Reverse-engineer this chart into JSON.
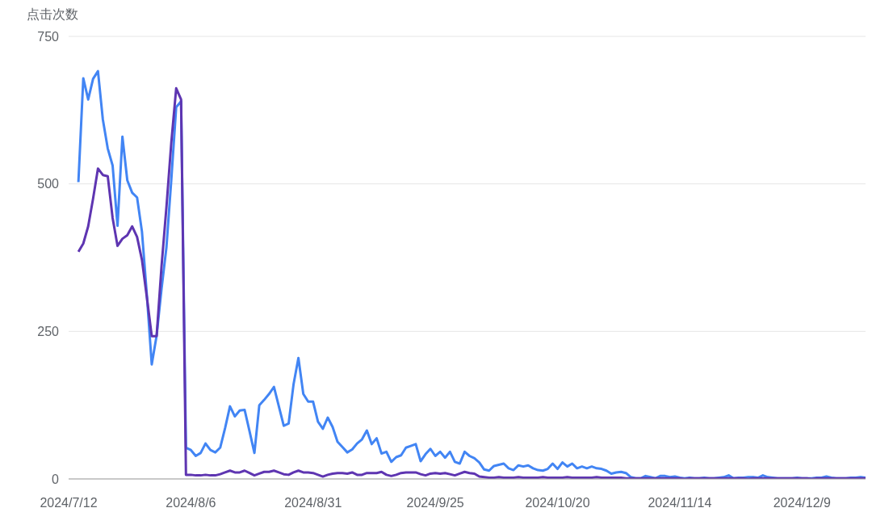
{
  "chart_data": {
    "type": "line",
    "ylabel": "点击次数",
    "x": [
      "2024-07-14",
      "2024-07-15",
      "2024-07-16",
      "2024-07-17",
      "2024-07-18",
      "2024-07-19",
      "2024-07-20",
      "2024-07-21",
      "2024-07-22",
      "2024-07-23",
      "2024-07-24",
      "2024-07-25",
      "2024-07-26",
      "2024-07-27",
      "2024-07-28",
      "2024-07-29",
      "2024-07-30",
      "2024-07-31",
      "2024-08-01",
      "2024-08-02",
      "2024-08-03",
      "2024-08-04",
      "2024-08-05",
      "2024-08-06",
      "2024-08-07",
      "2024-08-08",
      "2024-08-09",
      "2024-08-10",
      "2024-08-11",
      "2024-08-12",
      "2024-08-13",
      "2024-08-14",
      "2024-08-15",
      "2024-08-16",
      "2024-08-17",
      "2024-08-18",
      "2024-08-19",
      "2024-08-20",
      "2024-08-21",
      "2024-08-22",
      "2024-08-23",
      "2024-08-24",
      "2024-08-25",
      "2024-08-26",
      "2024-08-27",
      "2024-08-28",
      "2024-08-29",
      "2024-08-30",
      "2024-08-31",
      "2024-09-01",
      "2024-09-02",
      "2024-09-03",
      "2024-09-04",
      "2024-09-05",
      "2024-09-06",
      "2024-09-07",
      "2024-09-08",
      "2024-09-09",
      "2024-09-10",
      "2024-09-11",
      "2024-09-12",
      "2024-09-13",
      "2024-09-14",
      "2024-09-15",
      "2024-09-16",
      "2024-09-17",
      "2024-09-18",
      "2024-09-19",
      "2024-09-20",
      "2024-09-21",
      "2024-09-22",
      "2024-09-23",
      "2024-09-24",
      "2024-09-25",
      "2024-09-26",
      "2024-09-27",
      "2024-09-28",
      "2024-09-29",
      "2024-09-30",
      "2024-10-01",
      "2024-10-02",
      "2024-10-03",
      "2024-10-04",
      "2024-10-05",
      "2024-10-06",
      "2024-10-07",
      "2024-10-08",
      "2024-10-09",
      "2024-10-10",
      "2024-10-11",
      "2024-10-12",
      "2024-10-13",
      "2024-10-14",
      "2024-10-15",
      "2024-10-16",
      "2024-10-17",
      "2024-10-18",
      "2024-10-19",
      "2024-10-20",
      "2024-10-21",
      "2024-10-22",
      "2024-10-23",
      "2024-10-24",
      "2024-10-25",
      "2024-10-26",
      "2024-10-27",
      "2024-10-28",
      "2024-10-29",
      "2024-10-30",
      "2024-10-31",
      "2024-11-01",
      "2024-11-02",
      "2024-11-03",
      "2024-11-04",
      "2024-11-05",
      "2024-11-06",
      "2024-11-07",
      "2024-11-08",
      "2024-11-09",
      "2024-11-10",
      "2024-11-11",
      "2024-11-12",
      "2024-11-13",
      "2024-11-14",
      "2024-11-15",
      "2024-11-16",
      "2024-11-17",
      "2024-11-18",
      "2024-11-19",
      "2024-11-20",
      "2024-11-21",
      "2024-11-22",
      "2024-11-23",
      "2024-11-24",
      "2024-11-25",
      "2024-11-26",
      "2024-11-27",
      "2024-11-28",
      "2024-11-29",
      "2024-11-30",
      "2024-12-01",
      "2024-12-02",
      "2024-12-03",
      "2024-12-04",
      "2024-12-05",
      "2024-12-06",
      "2024-12-07",
      "2024-12-08",
      "2024-12-09",
      "2024-12-10",
      "2024-12-11",
      "2024-12-12",
      "2024-12-13",
      "2024-12-14",
      "2024-12-15",
      "2024-12-16",
      "2024-12-17",
      "2024-12-18",
      "2024-12-19",
      "2024-12-20",
      "2024-12-21",
      "2024-12-22"
    ],
    "series": [
      {
        "color": "#4285f4",
        "values": [
          503,
          679,
          643,
          678,
          691,
          609,
          560,
          531,
          429,
          580,
          506,
          485,
          477,
          419,
          312,
          194,
          243,
          322,
          392,
          507,
          630,
          640,
          53,
          49,
          39,
          44,
          60,
          49,
          45,
          53,
          86,
          123,
          106,
          116,
          117,
          81,
          44,
          125,
          134,
          144,
          156,
          123,
          90,
          94,
          160,
          205,
          144,
          131,
          131,
          97,
          85,
          104,
          88,
          63,
          54,
          45,
          50,
          60,
          67,
          82,
          59,
          69,
          43,
          46,
          29,
          37,
          40,
          53,
          56,
          59,
          30,
          42,
          51,
          39,
          46,
          36,
          46,
          29,
          26,
          46,
          39,
          35,
          28,
          16,
          14,
          22,
          24,
          26,
          18,
          15,
          23,
          21,
          23,
          18,
          15,
          14,
          17,
          26,
          17,
          28,
          21,
          26,
          18,
          21,
          18,
          21,
          18,
          17,
          14,
          9,
          11,
          12,
          10,
          3,
          1,
          1,
          5,
          3,
          1,
          5,
          5,
          3,
          4,
          2,
          1,
          2,
          1,
          1,
          2,
          1,
          1,
          2,
          3,
          6,
          1,
          2,
          2,
          3,
          3,
          2,
          6,
          3,
          2,
          1,
          1,
          1,
          1,
          2,
          1,
          1,
          1,
          2,
          2,
          4,
          2,
          1,
          1,
          1,
          2,
          2,
          3,
          2
        ]
      },
      {
        "color": "#5e35b1",
        "values": [
          385,
          399,
          428,
          475,
          526,
          515,
          513,
          442,
          395,
          407,
          413,
          428,
          410,
          371,
          308,
          242,
          242,
          360,
          460,
          570,
          662,
          643,
          7,
          7,
          6,
          6,
          7,
          6,
          6,
          8,
          11,
          14,
          11,
          11,
          14,
          10,
          6,
          9,
          12,
          12,
          14,
          11,
          8,
          7,
          11,
          14,
          11,
          11,
          10,
          7,
          4,
          7,
          9,
          10,
          10,
          9,
          11,
          7,
          7,
          10,
          10,
          10,
          12,
          7,
          5,
          7,
          10,
          11,
          11,
          11,
          8,
          6,
          9,
          10,
          9,
          10,
          8,
          6,
          9,
          12,
          10,
          9,
          4,
          3,
          2,
          2,
          3,
          2,
          2,
          2,
          3,
          2,
          2,
          2,
          2,
          3,
          2,
          2,
          2,
          2,
          3,
          2,
          2,
          2,
          2,
          2,
          3,
          2,
          2,
          2,
          2,
          2,
          1,
          1,
          1,
          1,
          1,
          1,
          1,
          1,
          1,
          1,
          1,
          1,
          0,
          1,
          1,
          1,
          1,
          1,
          1,
          1,
          1,
          1,
          1,
          1,
          1,
          0,
          1,
          1,
          1,
          1,
          1,
          1,
          1,
          1,
          1,
          1,
          1,
          1,
          0,
          1,
          1,
          1,
          1,
          1,
          1,
          1,
          1,
          1,
          1,
          1
        ]
      }
    ],
    "xlim": [
      "2024-07-12",
      "2024-12-22"
    ],
    "xticks": [
      {
        "value": "2024-07-12",
        "label": "2024/7/12"
      },
      {
        "value": "2024-08-06",
        "label": "2024/8/6"
      },
      {
        "value": "2024-08-31",
        "label": "2024/8/31"
      },
      {
        "value": "2024-09-25",
        "label": "2024/9/25"
      },
      {
        "value": "2024-10-20",
        "label": "2024/10/20"
      },
      {
        "value": "2024-11-14",
        "label": "2024/11/14"
      },
      {
        "value": "2024-12-09",
        "label": "2024/12/9"
      }
    ],
    "ylim": [
      0,
      750
    ],
    "yticks": [
      0,
      250,
      500,
      750
    ],
    "grid": "y"
  }
}
